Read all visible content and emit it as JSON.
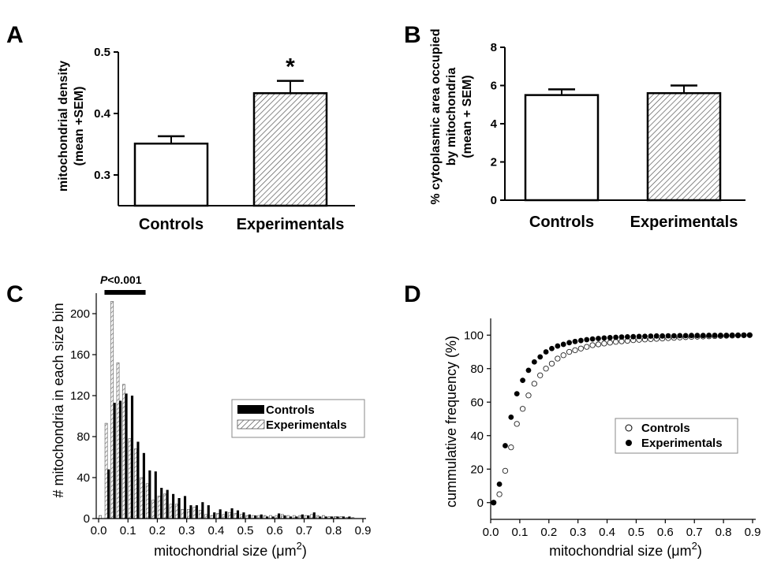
{
  "chart_data": [
    {
      "panel": "A",
      "type": "bar",
      "categories": [
        "Controls",
        "Experimentals"
      ],
      "values": [
        0.351,
        0.433
      ],
      "errors": [
        0.012,
        0.02
      ],
      "annotations": [
        "",
        "*"
      ],
      "fills": [
        "white",
        "hatched"
      ],
      "ylabel_lines": [
        "mitochondrial density",
        "(mean +SEM)"
      ],
      "ylim": [
        0.25,
        0.5
      ],
      "yticks": [
        "0.3",
        "0.4",
        "0.5"
      ]
    },
    {
      "panel": "B",
      "type": "bar",
      "categories": [
        "Controls",
        "Experimentals"
      ],
      "values": [
        5.5,
        5.6
      ],
      "errors": [
        0.3,
        0.4
      ],
      "fills": [
        "white",
        "hatched"
      ],
      "ylabel_lines": [
        "% cytoplasmic area occupied",
        "by mitochondria",
        "(mean + SEM)"
      ],
      "ylim": [
        0,
        8
      ],
      "yticks": [
        "0",
        "2",
        "4",
        "6",
        "8"
      ]
    },
    {
      "panel": "C",
      "type": "bar",
      "xlabel": "mitochondrial size (μm2)",
      "ylabel": "# mitochondria in each size bin",
      "xlim": [
        0,
        0.9
      ],
      "ylim": [
        0,
        220
      ],
      "xticks": [
        "0.0",
        "0.1",
        "0.2",
        "0.3",
        "0.4",
        "0.5",
        "0.6",
        "0.7",
        "0.8",
        "0.9"
      ],
      "yticks": [
        "0",
        "40",
        "80",
        "120",
        "160",
        "200"
      ],
      "annotation": "P<0.001",
      "annotation_range": [
        0.02,
        0.16
      ],
      "legend_position": "right",
      "bin_width": 0.02,
      "bins": [
        0.01,
        0.03,
        0.05,
        0.07,
        0.09,
        0.11,
        0.13,
        0.15,
        0.17,
        0.19,
        0.21,
        0.23,
        0.25,
        0.27,
        0.29,
        0.31,
        0.33,
        0.35,
        0.37,
        0.39,
        0.41,
        0.43,
        0.45,
        0.47,
        0.49,
        0.51,
        0.53,
        0.55,
        0.57,
        0.59,
        0.61,
        0.63,
        0.65,
        0.67,
        0.69,
        0.71,
        0.73,
        0.75,
        0.77,
        0.79,
        0.81,
        0.83,
        0.85,
        0.87
      ],
      "series": [
        {
          "name": "Controls",
          "fill": "black",
          "values": [
            0,
            48,
            113,
            115,
            122,
            120,
            75,
            64,
            47,
            46,
            30,
            28,
            24,
            20,
            22,
            13,
            13,
            16,
            13,
            6,
            9,
            7,
            10,
            8,
            6,
            4,
            3,
            4,
            2,
            2,
            5,
            3,
            2,
            2,
            4,
            3,
            6,
            2,
            2,
            2,
            2,
            2,
            2,
            0
          ]
        },
        {
          "name": "Experimentals",
          "fill": "hatched",
          "values": [
            3,
            93,
            212,
            152,
            131,
            78,
            68,
            40,
            34,
            18,
            22,
            24,
            14,
            14,
            9,
            9,
            11,
            8,
            4,
            3,
            5,
            4,
            6,
            5,
            4,
            3,
            3,
            3,
            3,
            3,
            3,
            4,
            3,
            3,
            3,
            3,
            4,
            3,
            3,
            2,
            2,
            2,
            1,
            1
          ]
        }
      ]
    },
    {
      "panel": "D",
      "type": "scatter",
      "xlabel": "mitochondrial size (μm2)",
      "ylabel": "cummulative frequency (%)",
      "xlim": [
        0,
        0.9
      ],
      "ylim": [
        -10,
        110
      ],
      "xticks": [
        "0.0",
        "0.1",
        "0.2",
        "0.3",
        "0.4",
        "0.5",
        "0.6",
        "0.7",
        "0.8",
        "0.9"
      ],
      "yticks": [
        "0",
        "20",
        "40",
        "60",
        "80",
        "100"
      ],
      "legend_position": "center-right",
      "x": [
        0.01,
        0.03,
        0.05,
        0.07,
        0.09,
        0.11,
        0.13,
        0.15,
        0.17,
        0.19,
        0.21,
        0.23,
        0.25,
        0.27,
        0.29,
        0.31,
        0.33,
        0.35,
        0.37,
        0.39,
        0.41,
        0.43,
        0.45,
        0.47,
        0.49,
        0.51,
        0.53,
        0.55,
        0.57,
        0.59,
        0.61,
        0.63,
        0.65,
        0.67,
        0.69,
        0.71,
        0.73,
        0.75,
        0.77,
        0.79,
        0.81,
        0.83,
        0.85,
        0.87,
        0.89
      ],
      "series": [
        {
          "name": "Controls",
          "marker": "open",
          "values": [
            0,
            5,
            19,
            33,
            47,
            56,
            64,
            71,
            76,
            80,
            83,
            86,
            88,
            90,
            91,
            92,
            93,
            94,
            94.5,
            95,
            95.5,
            96,
            96.3,
            96.6,
            97,
            97.2,
            97.4,
            97.6,
            97.8,
            98,
            98.2,
            98.4,
            98.6,
            98.8,
            99,
            99.1,
            99.2,
            99.3,
            99.4,
            99.5,
            99.6,
            99.7,
            99.8,
            99.9,
            100
          ]
        },
        {
          "name": "Experimentals",
          "marker": "filled",
          "values": [
            0,
            11,
            34,
            51,
            65,
            73,
            79,
            84,
            87,
            90,
            92,
            93.5,
            94.5,
            95.5,
            96.2,
            96.8,
            97.3,
            97.7,
            98,
            98.3,
            98.5,
            98.7,
            98.9,
            99,
            99.1,
            99.2,
            99.3,
            99.4,
            99.5,
            99.5,
            99.6,
            99.6,
            99.7,
            99.7,
            99.8,
            99.8,
            99.8,
            99.9,
            99.9,
            99.9,
            99.9,
            100,
            100,
            100,
            100
          ]
        }
      ]
    }
  ]
}
